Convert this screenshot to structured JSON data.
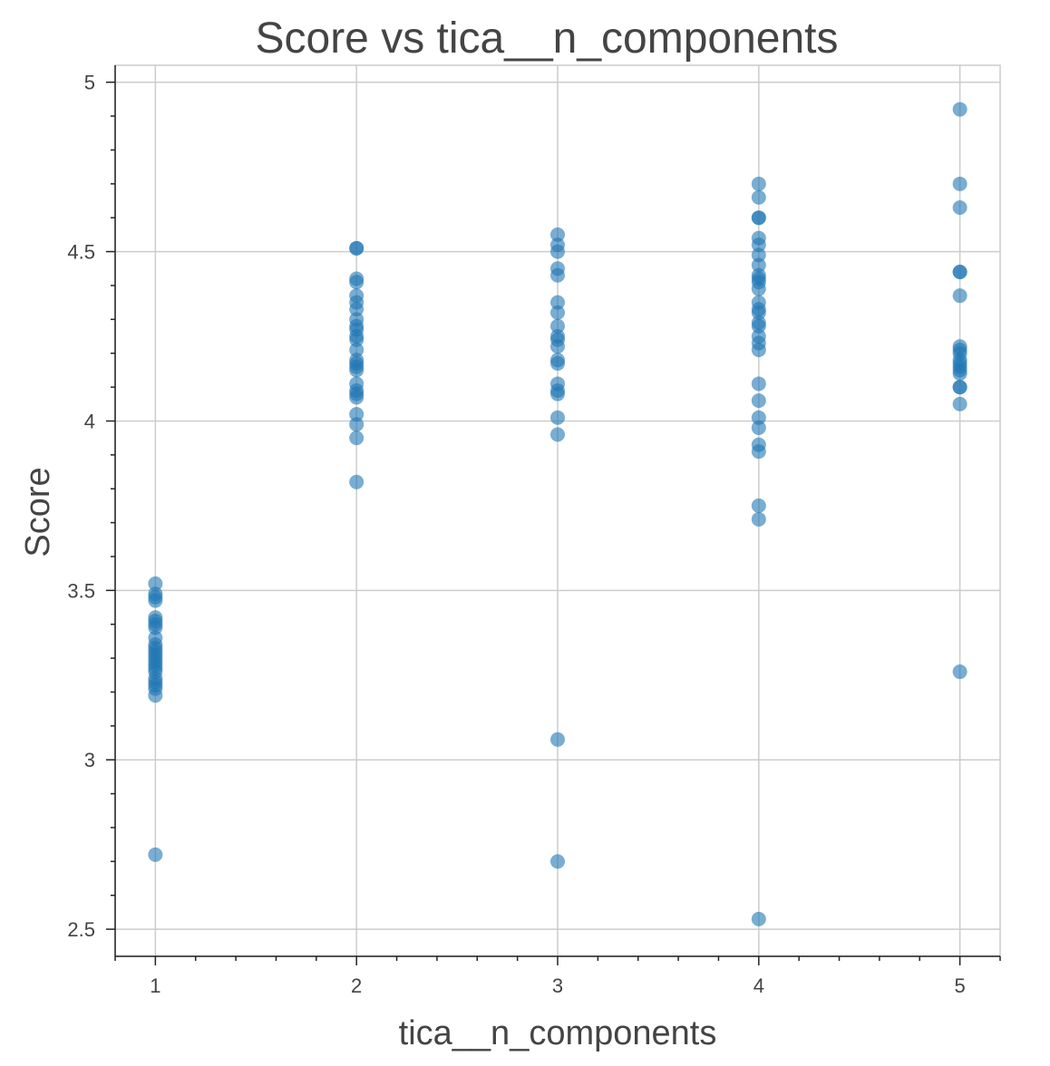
{
  "chart_data": {
    "type": "scatter",
    "title": "Score vs tica__n_components",
    "xlabel": "tica__n_components",
    "ylabel": "Score",
    "xlim": [
      0.8,
      5.2
    ],
    "ylim": [
      2.42,
      5.05
    ],
    "x_ticks": [
      1,
      2,
      3,
      4,
      5
    ],
    "x_tick_labels": [
      "1",
      "2",
      "3",
      "4",
      "5"
    ],
    "y_ticks": [
      2.5,
      3,
      3.5,
      4,
      4.5,
      5
    ],
    "y_tick_labels": [
      "2.5",
      "3",
      "3.5",
      "4",
      "4.5",
      "5"
    ],
    "grid": true,
    "marker_color": "#1f77b4",
    "marker_opacity": 0.6,
    "series": [
      {
        "points": [
          [
            1,
            3.52
          ],
          [
            1,
            3.49
          ],
          [
            1,
            3.48
          ],
          [
            1,
            3.47
          ],
          [
            1,
            3.42
          ],
          [
            1,
            3.41
          ],
          [
            1,
            3.4
          ],
          [
            1,
            3.39
          ],
          [
            1,
            3.36
          ],
          [
            1,
            3.34
          ],
          [
            1,
            3.33
          ],
          [
            1,
            3.32
          ],
          [
            1,
            3.31
          ],
          [
            1,
            3.3
          ],
          [
            1,
            3.29
          ],
          [
            1,
            3.28
          ],
          [
            1,
            3.27
          ],
          [
            1,
            3.26
          ],
          [
            1,
            3.24
          ],
          [
            1,
            3.23
          ],
          [
            1,
            3.22
          ],
          [
            1,
            3.21
          ],
          [
            1,
            3.19
          ],
          [
            1,
            2.72
          ],
          [
            2,
            4.51
          ],
          [
            2,
            4.51
          ],
          [
            2,
            4.42
          ],
          [
            2,
            4.41
          ],
          [
            2,
            4.37
          ],
          [
            2,
            4.35
          ],
          [
            2,
            4.33
          ],
          [
            2,
            4.3
          ],
          [
            2,
            4.28
          ],
          [
            2,
            4.27
          ],
          [
            2,
            4.25
          ],
          [
            2,
            4.24
          ],
          [
            2,
            4.21
          ],
          [
            2,
            4.18
          ],
          [
            2,
            4.17
          ],
          [
            2,
            4.16
          ],
          [
            2,
            4.15
          ],
          [
            2,
            4.11
          ],
          [
            2,
            4.09
          ],
          [
            2,
            4.08
          ],
          [
            2,
            4.07
          ],
          [
            2,
            4.02
          ],
          [
            2,
            3.99
          ],
          [
            2,
            3.95
          ],
          [
            2,
            3.82
          ],
          [
            3,
            4.55
          ],
          [
            3,
            4.52
          ],
          [
            3,
            4.5
          ],
          [
            3,
            4.45
          ],
          [
            3,
            4.43
          ],
          [
            3,
            4.35
          ],
          [
            3,
            4.32
          ],
          [
            3,
            4.28
          ],
          [
            3,
            4.25
          ],
          [
            3,
            4.24
          ],
          [
            3,
            4.22
          ],
          [
            3,
            4.18
          ],
          [
            3,
            4.17
          ],
          [
            3,
            4.11
          ],
          [
            3,
            4.09
          ],
          [
            3,
            4.08
          ],
          [
            3,
            4.01
          ],
          [
            3,
            3.96
          ],
          [
            3,
            3.06
          ],
          [
            3,
            2.7
          ],
          [
            4,
            4.7
          ],
          [
            4,
            4.66
          ],
          [
            4,
            4.6
          ],
          [
            4,
            4.6
          ],
          [
            4,
            4.54
          ],
          [
            4,
            4.52
          ],
          [
            4,
            4.49
          ],
          [
            4,
            4.46
          ],
          [
            4,
            4.43
          ],
          [
            4,
            4.42
          ],
          [
            4,
            4.41
          ],
          [
            4,
            4.39
          ],
          [
            4,
            4.35
          ],
          [
            4,
            4.33
          ],
          [
            4,
            4.32
          ],
          [
            4,
            4.29
          ],
          [
            4,
            4.28
          ],
          [
            4,
            4.25
          ],
          [
            4,
            4.23
          ],
          [
            4,
            4.21
          ],
          [
            4,
            4.11
          ],
          [
            4,
            4.06
          ],
          [
            4,
            4.01
          ],
          [
            4,
            3.98
          ],
          [
            4,
            3.93
          ],
          [
            4,
            3.91
          ],
          [
            4,
            3.75
          ],
          [
            4,
            3.71
          ],
          [
            4,
            2.53
          ],
          [
            5,
            4.92
          ],
          [
            5,
            4.7
          ],
          [
            5,
            4.63
          ],
          [
            5,
            4.44
          ],
          [
            5,
            4.44
          ],
          [
            5,
            4.37
          ],
          [
            5,
            4.22
          ],
          [
            5,
            4.21
          ],
          [
            5,
            4.2
          ],
          [
            5,
            4.18
          ],
          [
            5,
            4.17
          ],
          [
            5,
            4.16
          ],
          [
            5,
            4.15
          ],
          [
            5,
            4.14
          ],
          [
            5,
            4.1
          ],
          [
            5,
            4.1
          ],
          [
            5,
            4.05
          ],
          [
            5,
            3.26
          ]
        ]
      }
    ]
  }
}
